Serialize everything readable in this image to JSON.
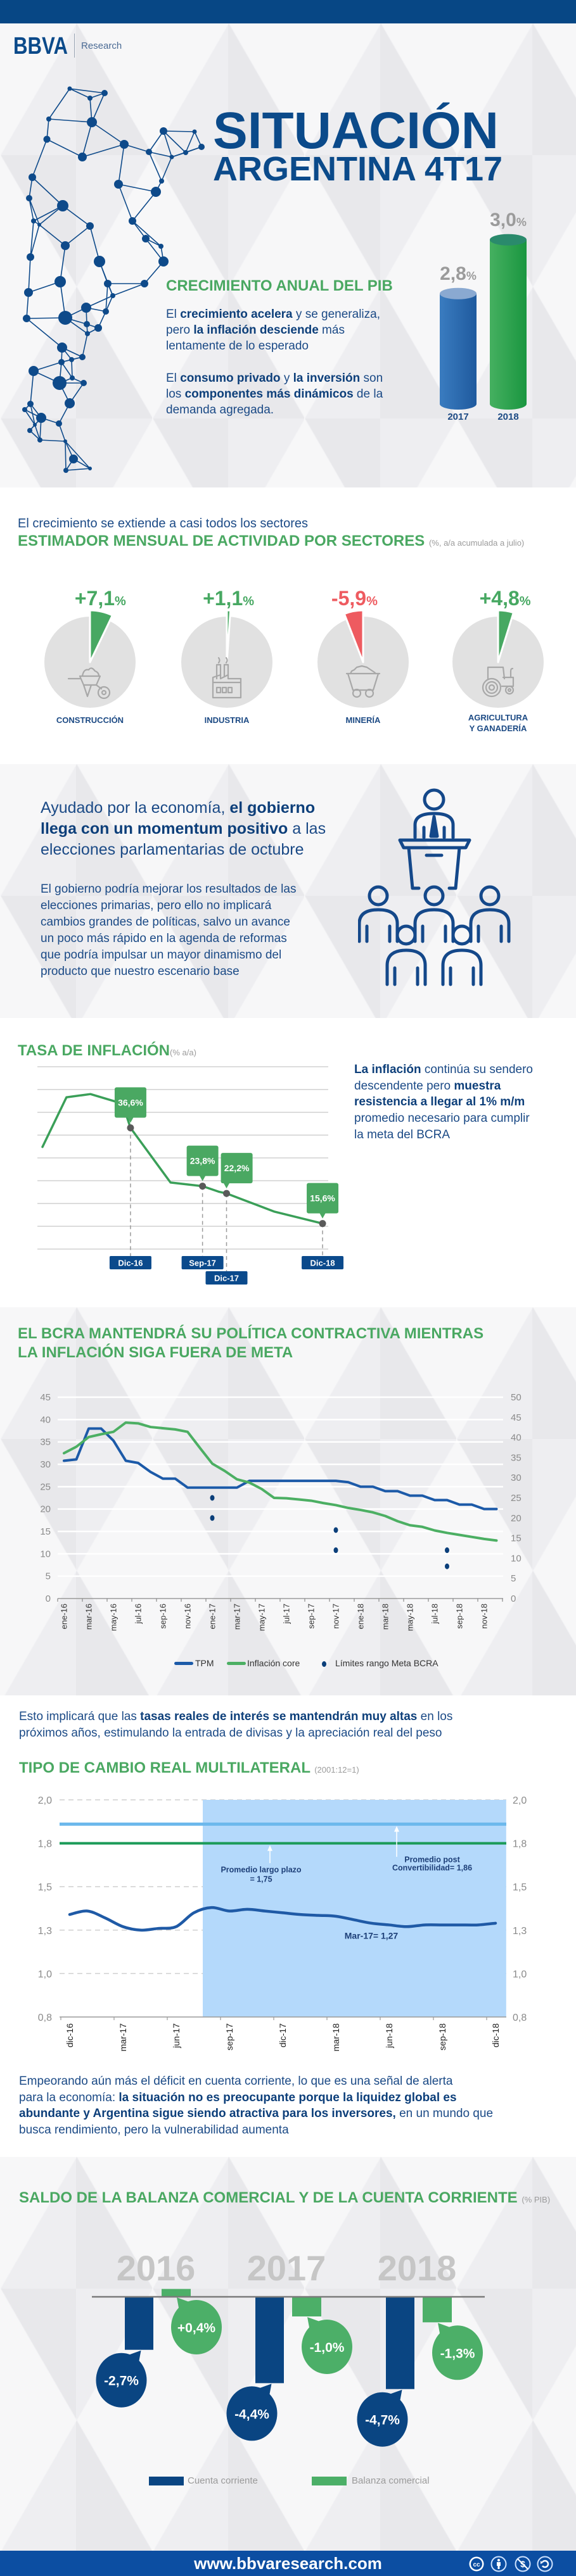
{
  "brand": {
    "name": "BBVA",
    "sub": "Research"
  },
  "colors": {
    "brand_blue": "#074785",
    "accent_green": "#4aa862",
    "negative_red": "#ee5b60",
    "footer_blue": "#0c4ea2",
    "text_blue": "#1b4a86"
  },
  "hero": {
    "title_line1": "SITUACIÓN",
    "title_line2": "ARGENTINA 4T17",
    "gdp_paragraphs": [
      [
        {
          "t": "El "
        },
        {
          "t": "crecimiento acelera",
          "b": true
        },
        {
          "t": " y se generaliza,\npero "
        },
        {
          "t": "la inflación desciende",
          "b": true
        },
        {
          "t": " más\nlentamente de lo esperado"
        }
      ],
      [
        {
          "t": "El "
        },
        {
          "t": "consumo privado",
          "b": true
        },
        {
          "t": " y "
        },
        {
          "t": "la inversión",
          "b": true
        },
        {
          "t": " son\nlos "
        },
        {
          "t": "componentes más dinámicos",
          "b": true
        },
        {
          "t": " de la\ndemanda agregada."
        }
      ]
    ]
  },
  "sectors_intro": "El crecimiento se extiende a casi todos los sectores",
  "elections": {
    "heading": [
      {
        "t": "Ayudado por la economía, "
      },
      {
        "t": "el gobierno\nllega con un momentum positivo",
        "b": true
      },
      {
        "t": " a las\nelecciones parlamentarias de octubre"
      }
    ],
    "body": "El gobierno podría mejorar los resultados de las\nelecciones primarias, pero ello no implicará\ncambios grandes de políticas, salvo un avance\nun poco más rápido en la agenda de reformas\nque podría impulsar un mayor dinamismo del\nproducto que nuestro escenario base",
    "icon": "podium-audience-icon"
  },
  "inflation_text": [
    {
      "t": "La inflación",
      "b": true
    },
    {
      "t": " continúa su sendero\ndescendente pero "
    },
    {
      "t": "muestra\nresistencia a llegar al 1% m/m",
      "b": true
    },
    {
      "t": "\npromedio necesario para cumplir\nla meta del BCRA"
    }
  ],
  "rates_text": [
    {
      "t": "Esto implicará que las "
    },
    {
      "t": "tasas reales de interés se mantendrán muy altas",
      "b": true
    },
    {
      "t": " en los\npróximos años, estimulando la entrada de divisas y la apreciación real del peso"
    }
  ],
  "deficit_text": [
    {
      "t": "Empeorando aún más el déficit en cuenta corriente, lo que es una señal de alerta\npara la economía: "
    },
    {
      "t": "la situación no es preocupante porque la liquidez global es\nabundante y Argentina sigue siendo atractiva para los inversores,",
      "b": true
    },
    {
      "t": " en un mundo que\nbusca rendimiento, pero la vulnerabilidad aumenta"
    }
  ],
  "footer": {
    "url": "www.bbvaresearch.com",
    "license_icons": [
      "cc-icon",
      "attribution-icon",
      "noncommercial-icon",
      "sharealike-icon"
    ]
  },
  "chart_data": [
    {
      "id": "gdp",
      "type": "bar",
      "title": "CRECIMIENTO ANUAL DEL PIB",
      "categories": [
        "2017",
        "2018"
      ],
      "values": [
        2.8,
        3.0
      ],
      "value_labels": [
        "2,8",
        "3,0"
      ],
      "unit": "%",
      "colors": [
        "#1f5a9e",
        "#1a9640"
      ]
    },
    {
      "id": "sectors",
      "type": "pie",
      "title": "ESTIMADOR MENSUAL DE ACTIVIDAD POR SECTORES",
      "subtitle": "(%, a/a acumulada a julio)",
      "categories": [
        "CONSTRUCCIÓN",
        "INDUSTRIA",
        "MINERÍA",
        "AGRICULTURA Y GANADERÍA"
      ],
      "label_lines": [
        [
          "CONSTRUCCIÓN"
        ],
        [
          "INDUSTRIA"
        ],
        [
          "MINERÍA"
        ],
        [
          "AGRICULTURA",
          "Y GANADERÍA"
        ]
      ],
      "values": [
        7.1,
        1.1,
        -5.9,
        4.8
      ],
      "value_labels": [
        "+7,1",
        "+1,1",
        "-5,9",
        "+4,8"
      ],
      "unit": "%",
      "icons": [
        "wheelbarrow-icon",
        "factory-icon",
        "mine-cart-icon",
        "tractor-icon"
      ],
      "colors": {
        "positive": "#47a862",
        "negative": "#ee5b60",
        "base": "#e1e1e1",
        "icon": "#a8a8a8"
      }
    },
    {
      "id": "inflation",
      "type": "line",
      "title": "TASA DE INFLACIÓN",
      "subtitle": "(% a/a)",
      "ylim": [
        10,
        50
      ],
      "grid_step": 5,
      "grid": true,
      "series": [
        {
          "name": "Inflación",
          "color": "#3a9f58",
          "points": [
            {
              "date": "ene-16",
              "value": 32.4
            },
            {
              "date": "abr-16",
              "value": 43.3
            },
            {
              "date": "jul-16",
              "value": 44.0
            },
            {
              "date": "nov-16",
              "value": 41.9
            },
            {
              "date": "dic-16",
              "value": 36.6
            },
            {
              "date": "may-17",
              "value": 24.6
            },
            {
              "date": "sep-17",
              "value": 23.8
            },
            {
              "date": "nov-17",
              "value": 22.6
            },
            {
              "date": "dic-17",
              "value": 22.2
            },
            {
              "date": "jun-18",
              "value": 18.2
            },
            {
              "date": "dic-18",
              "value": 15.6
            }
          ]
        }
      ],
      "annotations": [
        {
          "date": "Dic-16",
          "value": 36.6,
          "label": "36,6%"
        },
        {
          "date": "Sep-17",
          "value": 23.8,
          "label": "23,8%"
        },
        {
          "date": "Dic-17",
          "value": 22.2,
          "label": "22,2%"
        },
        {
          "date": "Dic-18",
          "value": 15.6,
          "label": "15,6%"
        }
      ],
      "callout_color": "#4aa862",
      "badge_color": "#0b4a8c"
    },
    {
      "id": "bcra",
      "type": "line",
      "title": "EL BCRA MANTENDRÁ SU POLÍTICA CONTRACTIVA MIENTRAS\nLA INFLACIÓN SIGA FUERA DE META",
      "categories": [
        "ene-16",
        "feb-16",
        "mar-16",
        "abr-16",
        "may-16",
        "jun-16",
        "jul-16",
        "ago-16",
        "sep-16",
        "oct-16",
        "nov-16",
        "dic-16",
        "ene-17",
        "feb-17",
        "mar-17",
        "abr-17",
        "may-17",
        "jun-17",
        "jul-17",
        "ago-17",
        "sep-17",
        "oct-17",
        "nov-17",
        "dic-17",
        "ene-18",
        "feb-18",
        "mar-18",
        "abr-18",
        "may-18",
        "jun-18",
        "jul-18",
        "ago-18",
        "sep-18",
        "oct-18",
        "nov-18",
        "dic-18"
      ],
      "xtick_labels": [
        "ene-16",
        "mar-16",
        "may-16",
        "jul-16",
        "sep-16",
        "nov-16",
        "ene-17",
        "mar-17",
        "may-17",
        "jul-17",
        "sep-17",
        "nov-17",
        "ene-18",
        "mar-18",
        "may-18",
        "jul-18",
        "sep-18",
        "nov-18"
      ],
      "y_left": {
        "lim": [
          0,
          45
        ],
        "ticks": [
          0,
          5,
          10,
          15,
          20,
          25,
          30,
          35,
          40,
          45
        ]
      },
      "y_right": {
        "lim": [
          0,
          50
        ],
        "ticks": [
          0,
          5,
          10,
          15,
          20,
          25,
          30,
          35,
          40,
          45,
          50
        ]
      },
      "grid": true,
      "legend": "bottom",
      "series": [
        {
          "name": "TPM",
          "axis": "left",
          "color": "#1c5aa8",
          "values": [
            30.8,
            31.1,
            38.0,
            38.0,
            35.3,
            30.8,
            30.3,
            28.3,
            26.8,
            26.8,
            24.8,
            24.8,
            24.8,
            24.8,
            24.8,
            26.3,
            26.3,
            26.3,
            26.3,
            26.3,
            26.3,
            26.3,
            26.3,
            26.0,
            25.0,
            25.0,
            24.0,
            24.0,
            23.0,
            23.0,
            22.0,
            22.0,
            21.0,
            21.0,
            20.0,
            20.0
          ]
        },
        {
          "name": "Inflación core",
          "axis": "right",
          "color": "#4caf63",
          "values": [
            36.1,
            37.7,
            40.1,
            40.8,
            41.4,
            43.7,
            43.5,
            42.6,
            42.3,
            42.0,
            41.4,
            37.4,
            33.5,
            31.7,
            29.6,
            28.8,
            27.2,
            25.0,
            24.9,
            24.6,
            24.3,
            23.7,
            23.2,
            22.5,
            22.0,
            21.4,
            20.5,
            19.2,
            18.2,
            17.8,
            16.9,
            16.3,
            15.8,
            15.3,
            14.8,
            14.4
          ]
        },
        {
          "name": "Límites rango Meta BCRA",
          "axis": "right",
          "type": "scatter",
          "color": "#0b3f7a",
          "points": [
            {
              "date": "ene-17",
              "value": 25
            },
            {
              "date": "ene-17",
              "value": 20
            },
            {
              "date": "nov-17",
              "value": 17
            },
            {
              "date": "nov-17",
              "value": 12
            },
            {
              "date": "ago-18",
              "value": 12
            },
            {
              "date": "ago-18",
              "value": 8
            }
          ]
        }
      ]
    },
    {
      "id": "tcrm",
      "type": "line",
      "title": "TIPO DE CAMBIO REAL MULTILATERAL",
      "subtitle": "(2001:12=1)",
      "ylim": [
        0.75,
        2.0
      ],
      "yticks": [
        0.75,
        1.0,
        1.25,
        1.5,
        1.75,
        2.0
      ],
      "ytick_labels": [
        "0,8",
        "1,0",
        "1,3",
        "1,5",
        "1,8",
        "2,0"
      ],
      "xtick_labels": [
        "dic-16",
        "mar-17",
        "jun-17",
        "sep-17",
        "dic-17",
        "mar-18",
        "jun-18",
        "sep-18",
        "dic-18"
      ],
      "series": [
        {
          "name": "TCRM",
          "color": "#1f5aa6",
          "points": [
            {
              "date": "dic-16",
              "value": 1.34
            },
            {
              "date": "ene-17",
              "value": 1.36
            },
            {
              "date": "feb-17",
              "value": 1.32
            },
            {
              "date": "mar-17",
              "value": 1.27
            },
            {
              "date": "abr-17",
              "value": 1.25
            },
            {
              "date": "may-17",
              "value": 1.26
            },
            {
              "date": "jun-17",
              "value": 1.27
            },
            {
              "date": "jul-17",
              "value": 1.35
            },
            {
              "date": "ago-17",
              "value": 1.38
            },
            {
              "date": "sep-17",
              "value": 1.36
            },
            {
              "date": "oct-17",
              "value": 1.37
            },
            {
              "date": "nov-17",
              "value": 1.36
            },
            {
              "date": "dic-17",
              "value": 1.35
            },
            {
              "date": "ene-18",
              "value": 1.34
            },
            {
              "date": "feb-18",
              "value": 1.335
            },
            {
              "date": "mar-18",
              "value": 1.33
            },
            {
              "date": "abr-18",
              "value": 1.31
            },
            {
              "date": "may-18",
              "value": 1.29
            },
            {
              "date": "jun-18",
              "value": 1.28
            },
            {
              "date": "jul-18",
              "value": 1.27
            },
            {
              "date": "ago-18",
              "value": 1.28
            },
            {
              "date": "sep-18",
              "value": 1.28
            },
            {
              "date": "oct-18",
              "value": 1.28
            },
            {
              "date": "nov-18",
              "value": 1.28
            },
            {
              "date": "dic-18",
              "value": 1.29
            }
          ]
        }
      ],
      "reference_lines": [
        {
          "name": "Promedio largo plazo",
          "value": 1.75,
          "color": "#1b9b58",
          "label_lines": [
            "Promedio largo plazo",
            "= 1,75"
          ]
        },
        {
          "name": "Promedio post Convertibilidad",
          "value": 1.86,
          "color": "#6cb8ec",
          "label_lines": [
            "Promedio post",
            "Convertibilidad= 1,86"
          ]
        }
      ],
      "shaded_period": {
        "from": "ago-17",
        "to": "dic-18",
        "color": "#b4d9fb"
      },
      "annotations": [
        {
          "label": "Mar-17= 1,27"
        }
      ]
    },
    {
      "id": "balance",
      "type": "bar",
      "title": "SALDO DE LA BALANZA COMERCIAL Y DE LA CUENTA CORRIENTE",
      "subtitle": "(% PIB)",
      "categories": [
        "2016",
        "2017",
        "2018"
      ],
      "series": [
        {
          "name": "Cuenta corriente",
          "color": "#0a4582",
          "values": [
            -2.7,
            -4.4,
            -4.7
          ],
          "labels": [
            "-2,7%",
            "-4,4%",
            "-4,7%"
          ]
        },
        {
          "name": "Balanza comercial",
          "color": "#4caf68",
          "values": [
            0.4,
            -1.0,
            -1.3
          ],
          "labels": [
            "+0,4%",
            "-1,0%",
            "-1,3%"
          ]
        }
      ],
      "legend": "bottom"
    }
  ]
}
